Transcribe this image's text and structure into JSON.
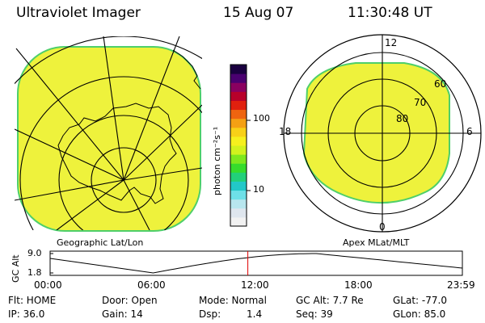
{
  "header": {
    "instrument": "Ultraviolet Imager",
    "date": "15 Aug 07",
    "time": "11:30:48 UT"
  },
  "panels": {
    "left_label": "Geographic Lat/Lon",
    "right_label": "Apex MLat/MLT"
  },
  "colorbar": {
    "unit_label": "photon cm⁻²s⁻¹",
    "tick_100": "100",
    "tick_10": "10",
    "colors": [
      "#f2f2f2",
      "#dfe6ee",
      "#b8e6ee",
      "#6ee0e8",
      "#22c8c8",
      "#22d07a",
      "#36dc2c",
      "#7ee81e",
      "#d2f21e",
      "#f6f01e",
      "#f8d018",
      "#f4a014",
      "#ee6410",
      "#e0200e",
      "#b8002a",
      "#8a0060",
      "#4a0070",
      "#1a0040"
    ]
  },
  "mlt_dial": {
    "label_top": "12",
    "label_bottom": "0",
    "label_left": "18",
    "label_right": "6",
    "lat_60": "60",
    "lat_70": "70",
    "lat_80": "80"
  },
  "altitude_plot": {
    "ylabel": "GC Alt",
    "ytick_top": "9.0",
    "ytick_bottom": "1.8",
    "x_ticks": [
      "00:00",
      "06:00",
      "12:00",
      "18:00",
      "23:59"
    ],
    "current_time_marker_hours": 11.51
  },
  "status": {
    "flt_label": "Flt: HOME",
    "ip_label": "IP: 36.0",
    "door_label": "Door: Open",
    "gain_label": "Gain: 14",
    "mode_label": "Mode: Normal",
    "dsp_label": "Dsp:",
    "dsp_value": "1.4",
    "gcalt_label": "GC Alt: 7.7 Re",
    "seq_label": "Seq: 39",
    "glat_label": "GLat: -77.0",
    "glon_label": "GLon: 85.0"
  },
  "colors": {
    "emission_fill": "#eef23c",
    "emission_edge": "#4ecf6a",
    "marker": "#e00000"
  }
}
